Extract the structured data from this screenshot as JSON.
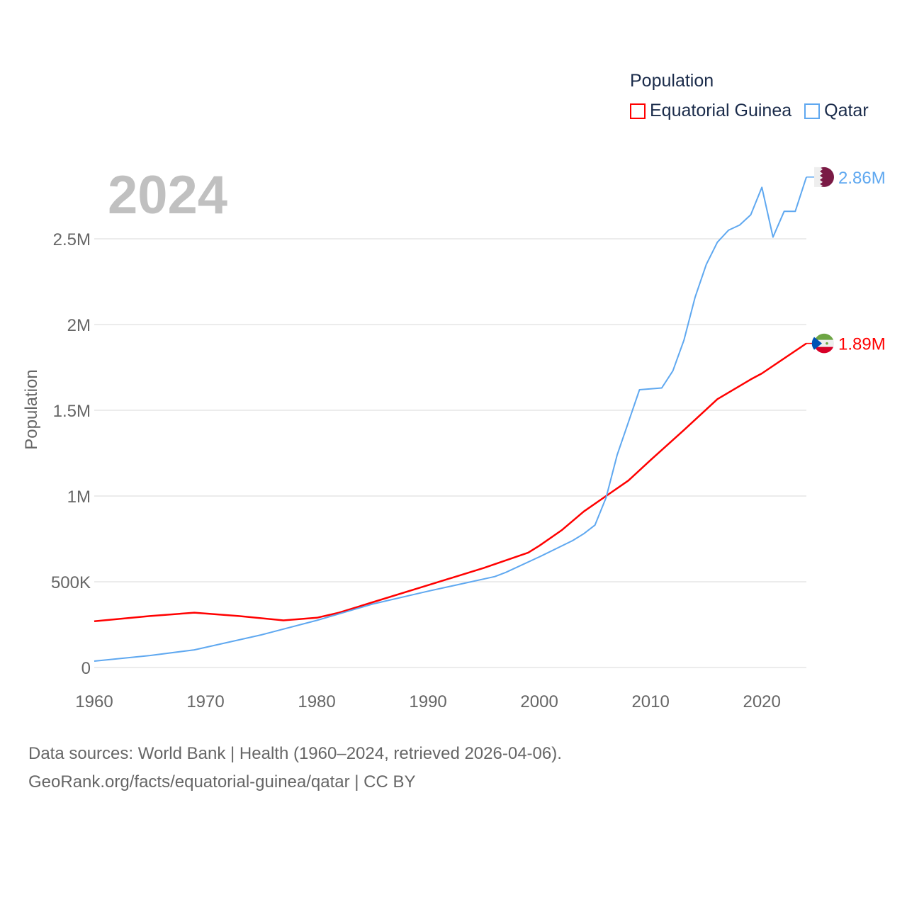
{
  "chart_data": {
    "type": "line",
    "title": "",
    "year_label": "2024",
    "xlabel": "",
    "ylabel": "Population",
    "xlim": [
      1960,
      2024
    ],
    "ylim": [
      0,
      2900000
    ],
    "x_ticks": [
      1960,
      1970,
      1980,
      1990,
      2000,
      2010,
      2020
    ],
    "x_tick_labels": [
      "1960",
      "1970",
      "1980",
      "1990",
      "2000",
      "2010",
      "2020"
    ],
    "y_ticks": [
      0,
      500000,
      1000000,
      1500000,
      2000000,
      2500000
    ],
    "y_tick_labels": [
      "0",
      "500K",
      "1M",
      "1.5M",
      "2M",
      "2.5M"
    ],
    "grid": true,
    "legend": {
      "title": "Population",
      "placement": "top-right"
    },
    "series": [
      {
        "name": "Equatorial Guinea",
        "color": "#ff0000",
        "end_label": "1.89M",
        "flag": "equatorial-guinea-flag",
        "points": [
          [
            1960,
            270000
          ],
          [
            1965,
            300000
          ],
          [
            1969,
            320000
          ],
          [
            1973,
            300000
          ],
          [
            1977,
            275000
          ],
          [
            1980,
            290000
          ],
          [
            1982,
            320000
          ],
          [
            1985,
            380000
          ],
          [
            1990,
            480000
          ],
          [
            1995,
            580000
          ],
          [
            1999,
            670000
          ],
          [
            2000,
            710000
          ],
          [
            2002,
            800000
          ],
          [
            2004,
            910000
          ],
          [
            2006,
            1000000
          ],
          [
            2008,
            1090000
          ],
          [
            2010,
            1210000
          ],
          [
            2013,
            1385000
          ],
          [
            2016,
            1565000
          ],
          [
            2019,
            1680000
          ],
          [
            2020,
            1715000
          ],
          [
            2024,
            1890000
          ]
        ]
      },
      {
        "name": "Qatar",
        "color": "#5fa8f0",
        "end_label": "2.86M",
        "flag": "qatar-flag",
        "points": [
          [
            1960,
            37000
          ],
          [
            1965,
            70000
          ],
          [
            1969,
            103000
          ],
          [
            1975,
            190000
          ],
          [
            1980,
            275000
          ],
          [
            1985,
            370000
          ],
          [
            1990,
            445000
          ],
          [
            1996,
            530000
          ],
          [
            1997,
            555000
          ],
          [
            2000,
            645000
          ],
          [
            2003,
            740000
          ],
          [
            2004,
            780000
          ],
          [
            2005,
            830000
          ],
          [
            2006,
            990000
          ],
          [
            2007,
            1240000
          ],
          [
            2008,
            1430000
          ],
          [
            2009,
            1620000
          ],
          [
            2011,
            1630000
          ],
          [
            2012,
            1730000
          ],
          [
            2013,
            1910000
          ],
          [
            2014,
            2160000
          ],
          [
            2015,
            2350000
          ],
          [
            2016,
            2480000
          ],
          [
            2017,
            2550000
          ],
          [
            2018,
            2580000
          ],
          [
            2019,
            2640000
          ],
          [
            2020,
            2800000
          ],
          [
            2021,
            2510000
          ],
          [
            2022,
            2660000
          ],
          [
            2023,
            2660000
          ],
          [
            2024,
            2860000
          ]
        ]
      }
    ]
  },
  "footer": {
    "line1": "Data sources: World Bank | Health (1960–2024, retrieved 2026-04-06).",
    "line2": "GeoRank.org/facts/equatorial-guinea/qatar | CC BY"
  }
}
